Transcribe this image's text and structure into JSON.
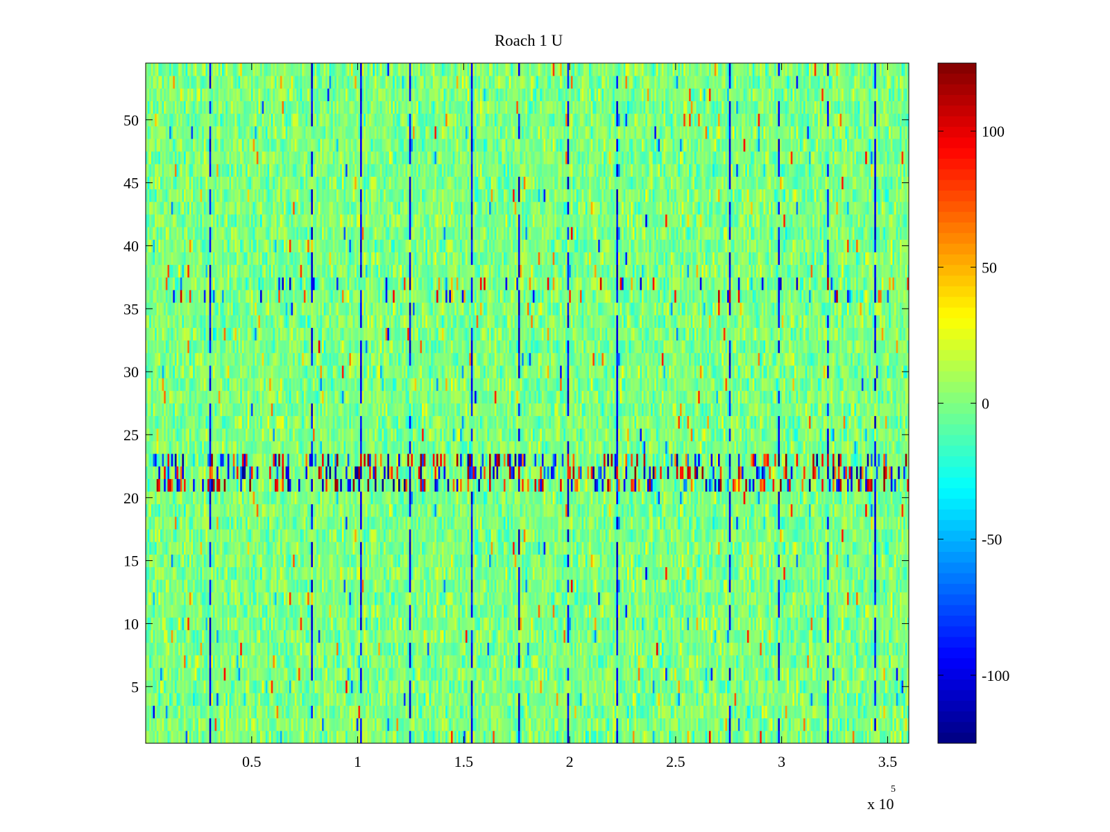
{
  "chart_data": {
    "type": "heatmap",
    "title": "Roach 1 U",
    "xlabel": "",
    "ylabel": "",
    "x_exponent_label": "x 10",
    "x_exponent": "5",
    "xlim": [
      0,
      360000
    ],
    "ylim": [
      0.5,
      54.5
    ],
    "rows": 54,
    "x_ticks": [
      {
        "value": 50000,
        "label": "0.5"
      },
      {
        "value": 100000,
        "label": "1"
      },
      {
        "value": 150000,
        "label": "1.5"
      },
      {
        "value": 200000,
        "label": "2"
      },
      {
        "value": 250000,
        "label": "2.5"
      },
      {
        "value": 300000,
        "label": "3"
      },
      {
        "value": 350000,
        "label": "3.5"
      }
    ],
    "y_ticks": [
      {
        "value": 5,
        "label": "5"
      },
      {
        "value": 10,
        "label": "10"
      },
      {
        "value": 15,
        "label": "15"
      },
      {
        "value": 20,
        "label": "20"
      },
      {
        "value": 25,
        "label": "25"
      },
      {
        "value": 30,
        "label": "30"
      },
      {
        "value": 35,
        "label": "35"
      },
      {
        "value": 40,
        "label": "40"
      },
      {
        "value": 45,
        "label": "45"
      },
      {
        "value": 50,
        "label": "50"
      }
    ],
    "colorbar": {
      "colormap": "jet",
      "clim": [
        -125,
        125
      ],
      "ticks": [
        {
          "value": 100,
          "label": "100"
        },
        {
          "value": 50,
          "label": "50"
        },
        {
          "value": 0,
          "label": "0"
        },
        {
          "value": -50,
          "label": "-50"
        },
        {
          "value": -100,
          "label": "-100"
        }
      ]
    },
    "values_summary": {
      "background_range": [
        -30,
        30
      ],
      "high_activity_rows": [
        21,
        22,
        23
      ],
      "high_activity_range": [
        -125,
        125
      ],
      "secondary_activity_rows": [
        36,
        37
      ],
      "recurring_spike_x": [
        30000,
        78000,
        101000,
        124000,
        153000,
        176000,
        199000,
        222000,
        275000,
        298000,
        321000,
        344000
      ]
    }
  }
}
